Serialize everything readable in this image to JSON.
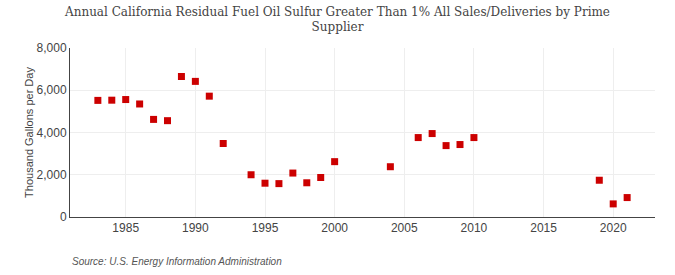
{
  "chart_data": {
    "type": "scatter",
    "title": "Annual California Residual Fuel Oil Sulfur Greater Than 1% All Sales/Deliveries by Prime\nSupplier",
    "ylabel": "Thousand Gallons per Day",
    "annotations": [
      "Source: U.S. Energy Information Administration"
    ],
    "x": [
      1983,
      1984,
      1985,
      1986,
      1987,
      1988,
      1989,
      1990,
      1991,
      1992,
      1994,
      1995,
      1996,
      1997,
      1998,
      1999,
      2000,
      2004,
      2006,
      2007,
      2008,
      2009,
      2010,
      2019,
      2020,
      2021
    ],
    "values": [
      5520,
      5530,
      5560,
      5350,
      4620,
      4560,
      6650,
      6420,
      5720,
      3480,
      2000,
      1600,
      1580,
      2080,
      1620,
      1870,
      2620,
      2380,
      3760,
      3950,
      3380,
      3430,
      3760,
      1740,
      620,
      920
    ],
    "color": "#cc0000",
    "marker": "square",
    "xlim": [
      1981,
      2023
    ],
    "xticks": [
      1985,
      1990,
      1995,
      2000,
      2005,
      2010,
      2015,
      2020
    ],
    "ylim": [
      0,
      8000
    ],
    "yticks": [
      0,
      {
        "value": 2000,
        "label": "2,000"
      },
      {
        "value": 4000,
        "label": "4,000"
      },
      {
        "value": 6000,
        "label": "6,000"
      },
      {
        "value": 8000,
        "label": "8,000"
      }
    ],
    "grid": true
  }
}
